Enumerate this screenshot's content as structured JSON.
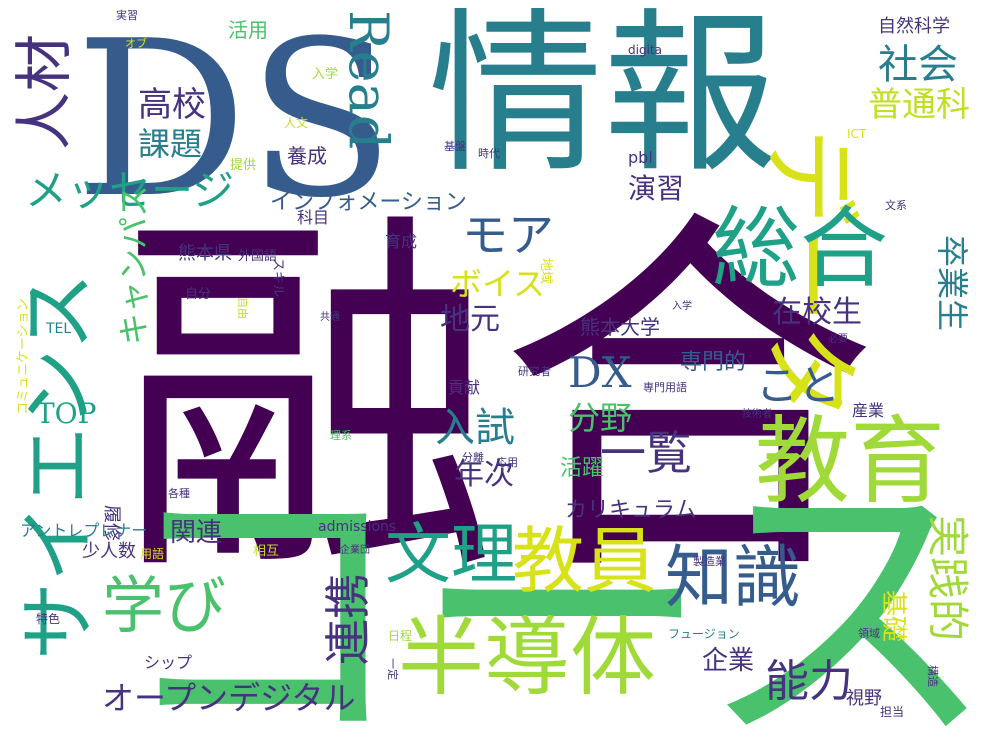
{
  "palette": {
    "deep": "#440154",
    "indigo": "#46327e",
    "blue": "#365c8d",
    "steel": "#277f8e",
    "teal": "#1fa187",
    "green": "#4ac16d",
    "lime": "#a0da39",
    "yellow": "#d8e219",
    "olive": "#c2df23"
  },
  "words": [
    {
      "id": "yuugou",
      "text": "融合",
      "color": "deep"
    },
    {
      "id": "course",
      "text": "コース",
      "color": "green"
    },
    {
      "id": "ds",
      "text": "DS",
      "color": "blue"
    },
    {
      "id": "jouhou",
      "text": "情報",
      "color": "steel"
    },
    {
      "id": "kyouiku",
      "text": "教育",
      "color": "lime"
    },
    {
      "id": "data",
      "text": "データ",
      "color": "yellow"
    },
    {
      "id": "sougou",
      "text": "総合",
      "color": "teal"
    },
    {
      "id": "science",
      "text": "サイエンス",
      "color": "teal"
    },
    {
      "id": "handoutai",
      "text": "半導体",
      "color": "lime"
    },
    {
      "id": "kyouin",
      "text": "教員",
      "color": "yellow"
    },
    {
      "id": "bunri",
      "text": "文理",
      "color": "teal"
    },
    {
      "id": "chishiki",
      "text": "知識",
      "color": "blue"
    },
    {
      "id": "manabi",
      "text": "学び",
      "color": "green"
    },
    {
      "id": "jinzai",
      "text": "人材",
      "color": "indigo"
    },
    {
      "id": "read",
      "text": "Read",
      "color": "steel"
    },
    {
      "id": "jissenteki",
      "text": "実践的",
      "color": "lime"
    },
    {
      "id": "message",
      "text": "メッセージ",
      "color": "teal"
    },
    {
      "id": "mohr",
      "text": "モア",
      "color": "blue"
    },
    {
      "id": "renkei",
      "text": "連携",
      "color": "indigo"
    },
    {
      "id": "ichiran",
      "text": "一覧",
      "color": "indigo"
    },
    {
      "id": "kaisha",
      "text": "社会",
      "color": "steel"
    },
    {
      "id": "nouryoku",
      "text": "能力",
      "color": "indigo"
    },
    {
      "id": "koto",
      "text": "こと",
      "color": "blue"
    },
    {
      "id": "nyuushi",
      "text": "入試",
      "color": "steel"
    },
    {
      "id": "dx",
      "text": "DX",
      "color": "blue"
    },
    {
      "id": "koukou",
      "text": "高校",
      "color": "indigo"
    },
    {
      "id": "kadai",
      "text": "課題",
      "color": "steel"
    },
    {
      "id": "opendigital",
      "text": "オープンデジタル",
      "color": "indigo"
    },
    {
      "id": "futsuuka",
      "text": "普通科",
      "color": "olive"
    },
    {
      "id": "sotsugyousei",
      "text": "卒業生",
      "color": "steel"
    },
    {
      "id": "campus",
      "text": "キャンパス",
      "color": "green"
    },
    {
      "id": "voice",
      "text": "ボイス",
      "color": "yellow"
    },
    {
      "id": "bunya",
      "text": "分野",
      "color": "green"
    },
    {
      "id": "zaikousei",
      "text": "在校生",
      "color": "indigo"
    },
    {
      "id": "chimoto",
      "text": "地元",
      "color": "indigo"
    },
    {
      "id": "enshuu",
      "text": "演習",
      "color": "indigo"
    },
    {
      "id": "nenji",
      "text": "年次",
      "color": "indigo"
    },
    {
      "id": "top",
      "text": "TOP",
      "color": "teal"
    },
    {
      "id": "kanren",
      "text": "関連",
      "color": "indigo"
    },
    {
      "id": "kigyou",
      "text": "企業",
      "color": "indigo"
    },
    {
      "id": "kiso",
      "text": "基礎",
      "color": "yellow"
    },
    {
      "id": "curriculum",
      "text": "カリキュラム",
      "color": "indigo"
    },
    {
      "id": "information",
      "text": "インフォメーション",
      "color": "blue"
    },
    {
      "id": "kumadai",
      "text": "熊本大学",
      "color": "indigo"
    },
    {
      "id": "katsuyaku",
      "text": "活躍",
      "color": "green"
    },
    {
      "id": "senmonteki",
      "text": "専門的",
      "color": "blue"
    },
    {
      "id": "shizenkagaku",
      "text": "自然科学",
      "color": "indigo"
    },
    {
      "id": "katsuyou",
      "text": "活用",
      "color": "green"
    },
    {
      "id": "yousei",
      "text": "養成",
      "color": "indigo"
    },
    {
      "id": "ikusei",
      "text": "育成",
      "color": "indigo"
    },
    {
      "id": "kamoku",
      "text": "科目",
      "color": "indigo"
    },
    {
      "id": "pbl",
      "text": "pbl",
      "color": "indigo"
    },
    {
      "id": "kumamotoken",
      "text": "熊本県",
      "color": "indigo"
    },
    {
      "id": "sangyou",
      "text": "産業",
      "color": "indigo"
    },
    {
      "id": "rishuu",
      "text": "履修",
      "color": "indigo"
    },
    {
      "id": "shouninzuu",
      "text": "少人数",
      "color": "indigo"
    },
    {
      "id": "entrepreneur",
      "text": "アントレプレナー",
      "color": "steel"
    },
    {
      "id": "ship",
      "text": "シップ",
      "color": "indigo"
    },
    {
      "id": "kouken",
      "text": "貢献",
      "color": "indigo"
    },
    {
      "id": "shiya",
      "text": "視野",
      "color": "indigo"
    },
    {
      "id": "tel",
      "text": "TEL",
      "color": "steel"
    },
    {
      "id": "communication",
      "text": "コミュニケーション",
      "color": "yellow"
    },
    {
      "id": "admissions",
      "text": "admissions",
      "color": "indigo"
    },
    {
      "id": "digita",
      "text": "digita",
      "color": "indigo"
    },
    {
      "id": "ict",
      "text": "ICT",
      "color": "yellow"
    },
    {
      "id": "jisshuu",
      "text": "実習",
      "color": "indigo"
    },
    {
      "id": "ob",
      "text": "オブ",
      "color": "yellow"
    },
    {
      "id": "nyuugaku",
      "text": "入学",
      "color": "lime"
    },
    {
      "id": "jinbun",
      "text": "人文",
      "color": "olive"
    },
    {
      "id": "kiban",
      "text": "基盤",
      "color": "indigo"
    },
    {
      "id": "jidai",
      "text": "時代",
      "color": "indigo"
    },
    {
      "id": "teikyou",
      "text": "提供",
      "color": "lime"
    },
    {
      "id": "bunkei",
      "text": "文系",
      "color": "indigo"
    },
    {
      "id": "gaikokugo",
      "text": "外国語",
      "color": "indigo"
    },
    {
      "id": "jibun",
      "text": "自分",
      "color": "indigo"
    },
    {
      "id": "kyoudou",
      "text": "共通",
      "color": "indigo"
    },
    {
      "id": "nyuugaku2",
      "text": "入学",
      "color": "indigo"
    },
    {
      "id": "hitsuyou",
      "text": "必要",
      "color": "indigo"
    },
    {
      "id": "kenkyuusha",
      "text": "研究者",
      "color": "indigo"
    },
    {
      "id": "senmonyougo",
      "text": "専門用語",
      "color": "indigo"
    },
    {
      "id": "gijutsusha",
      "text": "技術者",
      "color": "indigo"
    },
    {
      "id": "rikei",
      "text": "理系",
      "color": "green"
    },
    {
      "id": "bunri2",
      "text": "分離",
      "color": "indigo"
    },
    {
      "id": "ouyou",
      "text": "応用",
      "color": "indigo"
    },
    {
      "id": "kakushu",
      "text": "各種",
      "color": "indigo"
    },
    {
      "id": "aigo",
      "text": "相互",
      "color": "olive"
    },
    {
      "id": "seizougyou",
      "text": "製造業",
      "color": "indigo"
    },
    {
      "id": "kigyoudan",
      "text": "企業団",
      "color": "indigo"
    },
    {
      "id": "tokushoku",
      "text": "特色",
      "color": "indigo"
    },
    {
      "id": "fusion",
      "text": "フュージョン",
      "color": "steel"
    },
    {
      "id": "ryouiki",
      "text": "領域",
      "color": "indigo"
    },
    {
      "id": "tantou",
      "text": "担当",
      "color": "indigo"
    },
    {
      "id": "jikan",
      "text": "自由",
      "color": "olive"
    },
    {
      "id": "skill",
      "text": "スキル",
      "color": "indigo"
    },
    {
      "id": "chiiki",
      "text": "地域",
      "color": "yellow"
    },
    {
      "id": "takuzen",
      "text": "一定",
      "color": "indigo"
    },
    {
      "id": "hinmoku",
      "text": "日程",
      "color": "lime"
    },
    {
      "id": "kouzou",
      "text": "構造",
      "color": "indigo"
    },
    {
      "id": "yougo",
      "text": "用語",
      "color": "yellow"
    }
  ]
}
